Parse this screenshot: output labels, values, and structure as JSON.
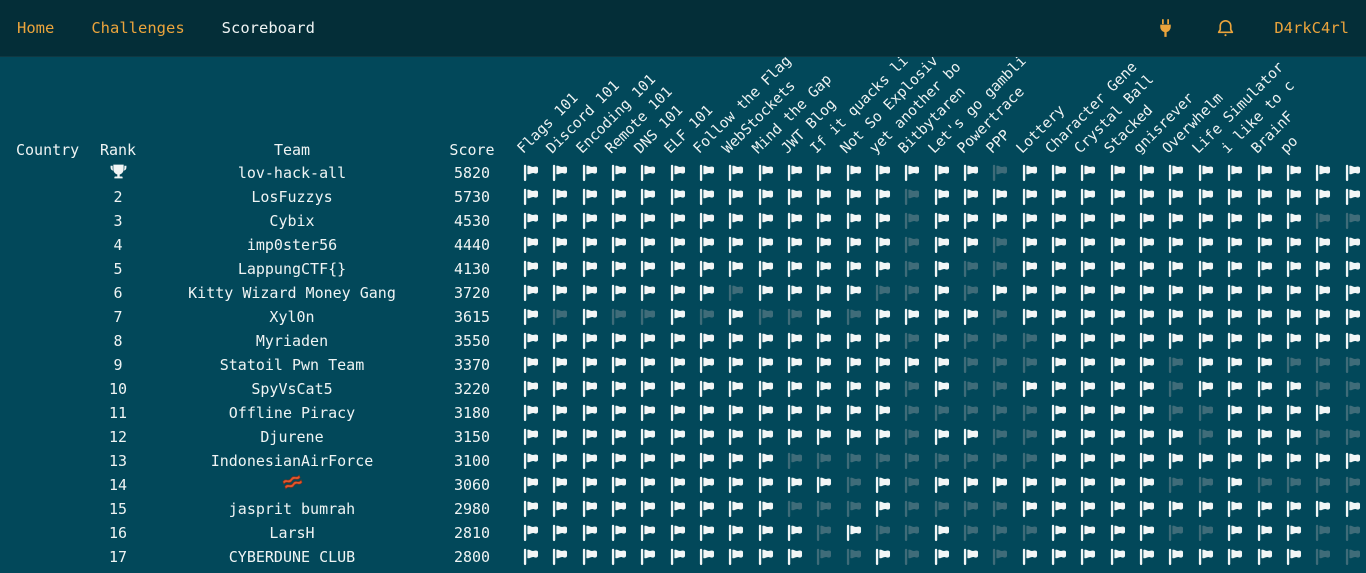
{
  "nav": {
    "links": [
      {
        "label": "Home",
        "state": "link"
      },
      {
        "label": "Challenges",
        "state": "link"
      },
      {
        "label": "Scoreboard",
        "state": "current"
      }
    ],
    "username": "D4rkC4rl"
  },
  "colors": {
    "nav_bg": "#042e38",
    "body_bg": "#02485a",
    "accent_orange": "#eba43c",
    "text_white": "#eff4f4",
    "flag_solved": "#f2f6f6",
    "flag_unsolved": "#3f6c79"
  },
  "scoreboard": {
    "column_headers": {
      "country": "Country",
      "rank": "Rank",
      "team": "Team",
      "score": "Score"
    },
    "challenges": [
      "Flags 101",
      "Discord 101",
      "Encoding 101",
      "Remote 101",
      "DNS 101",
      "ELF 101",
      "Follow the Flag",
      "WebStockets",
      "Mind the Gap",
      "JWT Blog",
      "If it quacks li",
      "Not So Explosiv",
      "yet another bo",
      "Bitbytaren",
      "Let's go gambli",
      "Powertrace",
      "PPP",
      "Lottery",
      "Character Gene",
      "Crystal Ball",
      "Stacked",
      "gnisrever",
      "Overwhelm",
      "Life Simulator",
      "i like to c",
      "BrainF",
      "po",
      "",
      ""
    ],
    "rows": [
      {
        "rank": "1",
        "rank_icon": "trophy",
        "country": "",
        "team": "lov-hack-all",
        "score": "5820",
        "solves": [
          1,
          1,
          1,
          1,
          1,
          1,
          1,
          1,
          1,
          1,
          1,
          1,
          1,
          1,
          1,
          1,
          0,
          1,
          1,
          1,
          1,
          1,
          1,
          1,
          1,
          1,
          1,
          1,
          1
        ]
      },
      {
        "rank": "2",
        "country": "",
        "team": "LosFuzzys",
        "score": "5730",
        "solves": [
          1,
          1,
          1,
          1,
          1,
          1,
          1,
          1,
          1,
          1,
          1,
          1,
          1,
          0,
          1,
          1,
          1,
          1,
          1,
          1,
          1,
          1,
          1,
          1,
          1,
          1,
          1,
          1,
          1
        ]
      },
      {
        "rank": "3",
        "country": "",
        "team": "Cybix",
        "score": "4530",
        "solves": [
          1,
          1,
          1,
          1,
          1,
          1,
          1,
          1,
          1,
          1,
          1,
          1,
          1,
          0,
          1,
          1,
          1,
          1,
          1,
          1,
          1,
          1,
          1,
          1,
          1,
          1,
          1,
          0,
          0
        ]
      },
      {
        "rank": "4",
        "country": "",
        "team": "imp0ster56",
        "score": "4440",
        "solves": [
          1,
          1,
          1,
          1,
          1,
          1,
          1,
          1,
          1,
          1,
          1,
          1,
          1,
          0,
          1,
          1,
          0,
          1,
          1,
          1,
          1,
          1,
          1,
          1,
          1,
          1,
          1,
          1,
          1
        ]
      },
      {
        "rank": "5",
        "country": "",
        "team": "LappungCTF{}",
        "score": "4130",
        "solves": [
          1,
          1,
          1,
          1,
          1,
          1,
          1,
          1,
          1,
          1,
          1,
          1,
          1,
          0,
          1,
          0,
          0,
          1,
          1,
          1,
          1,
          1,
          1,
          1,
          1,
          1,
          1,
          1,
          1
        ]
      },
      {
        "rank": "6",
        "country": "",
        "team": "Kitty Wizard Money Gang",
        "score": "3720",
        "solves": [
          1,
          1,
          1,
          1,
          1,
          1,
          1,
          0,
          1,
          1,
          1,
          1,
          0,
          0,
          1,
          0,
          1,
          1,
          1,
          1,
          1,
          1,
          1,
          1,
          1,
          1,
          1,
          1,
          1
        ]
      },
      {
        "rank": "7",
        "country": "",
        "team": "Xyl0n",
        "score": "3615",
        "solves": [
          1,
          0,
          1,
          0,
          0,
          1,
          0,
          1,
          0,
          0,
          1,
          0,
          1,
          1,
          1,
          1,
          0,
          1,
          1,
          1,
          1,
          1,
          1,
          1,
          1,
          1,
          1,
          1,
          1
        ]
      },
      {
        "rank": "8",
        "country": "",
        "team": "Myriaden",
        "score": "3550",
        "solves": [
          1,
          1,
          1,
          1,
          1,
          1,
          1,
          1,
          1,
          1,
          1,
          1,
          1,
          0,
          1,
          0,
          0,
          0,
          1,
          1,
          1,
          1,
          1,
          1,
          1,
          1,
          1,
          1,
          1
        ]
      },
      {
        "rank": "9",
        "country": "",
        "team": "Statoil Pwn Team",
        "score": "3370",
        "solves": [
          1,
          1,
          1,
          1,
          1,
          1,
          1,
          1,
          1,
          1,
          1,
          1,
          1,
          1,
          1,
          0,
          0,
          0,
          1,
          1,
          1,
          1,
          0,
          1,
          1,
          1,
          0,
          0,
          0
        ]
      },
      {
        "rank": "10",
        "country": "",
        "team": "SpyVsCat5",
        "score": "3220",
        "solves": [
          1,
          1,
          1,
          1,
          1,
          1,
          1,
          1,
          1,
          1,
          1,
          1,
          1,
          0,
          1,
          0,
          0,
          1,
          1,
          1,
          1,
          1,
          0,
          1,
          1,
          1,
          1,
          0,
          0
        ]
      },
      {
        "rank": "11",
        "country": "",
        "team": "Offline Piracy",
        "score": "3180",
        "solves": [
          1,
          1,
          1,
          1,
          1,
          1,
          1,
          1,
          1,
          1,
          1,
          1,
          1,
          0,
          0,
          0,
          0,
          0,
          1,
          1,
          1,
          1,
          0,
          0,
          1,
          1,
          1,
          1,
          0
        ]
      },
      {
        "rank": "12",
        "country": "",
        "team": "Djurene",
        "score": "3150",
        "solves": [
          1,
          1,
          1,
          1,
          1,
          1,
          1,
          1,
          1,
          1,
          1,
          1,
          1,
          0,
          1,
          1,
          0,
          0,
          1,
          1,
          1,
          1,
          1,
          0,
          1,
          1,
          1,
          0,
          0
        ]
      },
      {
        "rank": "13",
        "country": "",
        "team": "IndonesianAirForce",
        "score": "3100",
        "solves": [
          1,
          1,
          1,
          1,
          1,
          1,
          1,
          1,
          1,
          0,
          0,
          0,
          0,
          0,
          0,
          0,
          0,
          0,
          1,
          1,
          1,
          1,
          1,
          1,
          1,
          1,
          1,
          1,
          1
        ]
      },
      {
        "rank": "14",
        "country": "",
        "team": "",
        "team_icon": "bacon",
        "score": "3060",
        "solves": [
          1,
          1,
          1,
          1,
          1,
          1,
          1,
          1,
          1,
          1,
          1,
          0,
          1,
          0,
          1,
          1,
          1,
          1,
          1,
          1,
          1,
          1,
          0,
          0,
          1,
          0,
          0,
          0,
          0
        ]
      },
      {
        "rank": "15",
        "country": "",
        "team": "jasprit bumrah",
        "score": "2980",
        "solves": [
          1,
          1,
          1,
          1,
          1,
          1,
          1,
          1,
          1,
          0,
          0,
          0,
          1,
          0,
          0,
          0,
          0,
          1,
          1,
          1,
          1,
          1,
          1,
          1,
          1,
          1,
          1,
          1,
          1
        ]
      },
      {
        "rank": "16",
        "country": "",
        "team": "LarsH",
        "score": "2810",
        "solves": [
          1,
          1,
          1,
          1,
          1,
          1,
          1,
          1,
          1,
          1,
          0,
          1,
          0,
          0,
          1,
          0,
          0,
          0,
          1,
          1,
          1,
          1,
          0,
          0,
          1,
          1,
          1,
          0,
          0
        ]
      },
      {
        "rank": "17",
        "country": "",
        "team": "CYBERDUNE CLUB",
        "score": "2800",
        "solves": [
          1,
          1,
          1,
          1,
          1,
          1,
          1,
          1,
          1,
          1,
          0,
          0,
          1,
          0,
          1,
          1,
          0,
          1,
          1,
          1,
          1,
          1,
          1,
          1,
          1,
          1,
          1,
          0,
          0
        ]
      }
    ]
  }
}
